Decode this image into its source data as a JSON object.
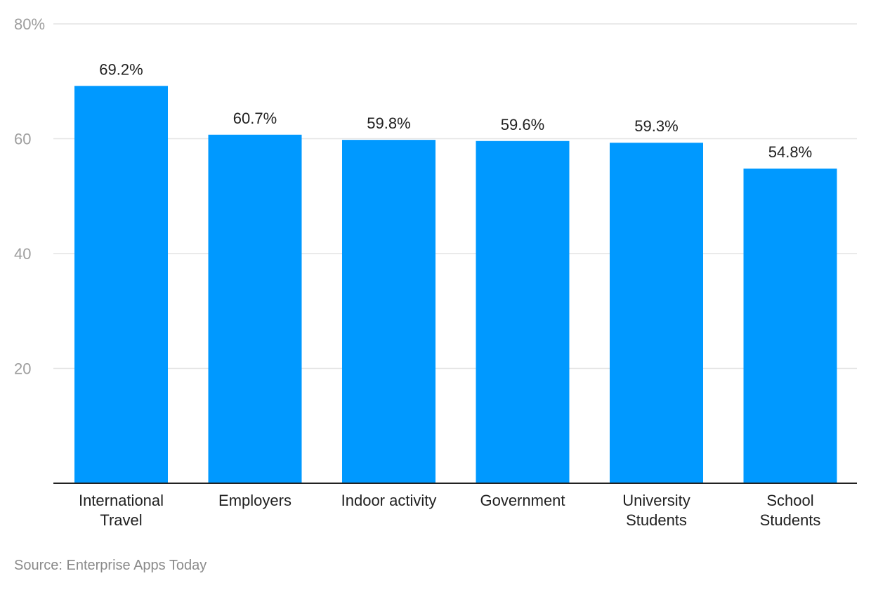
{
  "chart_data": {
    "type": "bar",
    "categories": [
      [
        "International",
        "Travel"
      ],
      [
        "Employers"
      ],
      [
        "Indoor activity"
      ],
      [
        "Government"
      ],
      [
        "University",
        "Students"
      ],
      [
        "School",
        "Students"
      ]
    ],
    "values": [
      69.2,
      60.7,
      59.8,
      59.6,
      59.3,
      54.8
    ],
    "data_labels": [
      "69.2%",
      "60.7%",
      "59.8%",
      "59.6%",
      "59.3%",
      "54.8%"
    ],
    "y_ticks": [
      {
        "value": 20,
        "label": "20"
      },
      {
        "value": 40,
        "label": "40"
      },
      {
        "value": 60,
        "label": "60"
      },
      {
        "value": 80,
        "label": "80%"
      }
    ],
    "ylim": [
      0,
      80
    ],
    "grid": true,
    "legend": "none",
    "bar_color": "#0099ff",
    "title": "",
    "xlabel": "",
    "ylabel": ""
  },
  "source": "Source: Enterprise Apps Today"
}
